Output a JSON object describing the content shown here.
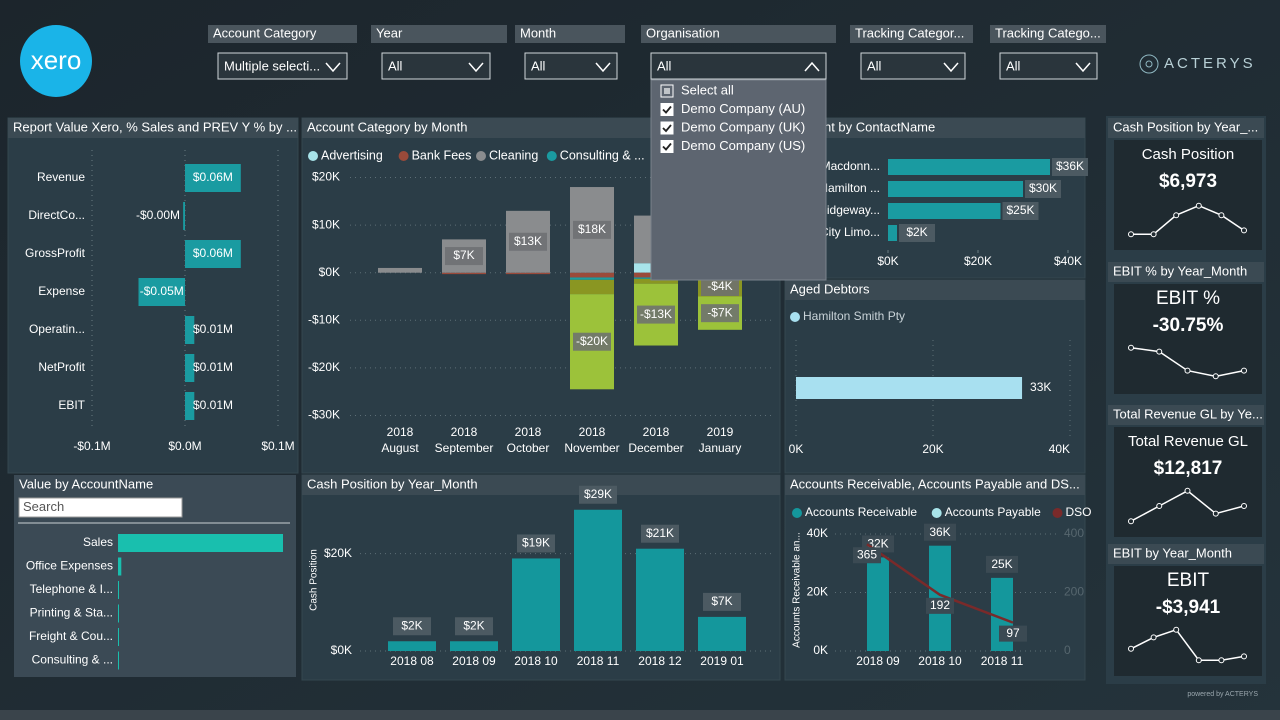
{
  "logo": "xero",
  "brand": "ACTERYS",
  "footer": "powered by ACTERYS",
  "filters": [
    {
      "label": "Account Category",
      "value": "Multiple selecti..."
    },
    {
      "label": "Year",
      "value": "All"
    },
    {
      "label": "Month",
      "value": "All"
    },
    {
      "label": "Organisation",
      "value": "All"
    },
    {
      "label": "Tracking Categor...",
      "value": "All"
    },
    {
      "label": "Tracking Catego...",
      "value": "All"
    }
  ],
  "organisation_dropdown": {
    "options": [
      "Select all",
      "Demo Company (AU)",
      "Demo Company (UK)",
      "Demo Company (US)"
    ]
  },
  "report_value": {
    "type": "bar",
    "title": "Report Value Xero, % Sales and PREV Y % by ...",
    "categories": [
      "Revenue",
      "DirectCo...",
      "GrossProfit",
      "Expense",
      "Operatin...",
      "NetProfit",
      "EBIT"
    ],
    "values": [
      0.06,
      -0.002,
      0.06,
      -0.05,
      0.01,
      0.01,
      0.01
    ],
    "value_labels": [
      "$0.06M",
      "-$0.00M",
      "$0.06M",
      "-$0.05M",
      "$0.01M",
      "$0.01M",
      "$0.01M"
    ],
    "color": "#1a9ba1",
    "xlim": [
      -0.1,
      0.1
    ],
    "xticks": [
      {
        "value": -0.1,
        "label": "-$0.1M"
      },
      {
        "value": 0,
        "label": "$0.0M"
      },
      {
        "value": 0.1,
        "label": "$0.1M"
      }
    ]
  },
  "account_category": {
    "type": "bar",
    "title": "Account Category by Month",
    "categories": [
      [
        "2018",
        "August"
      ],
      [
        "2018",
        "September"
      ],
      [
        "2018",
        "October"
      ],
      [
        "2018",
        "November"
      ],
      [
        "2018",
        "December"
      ],
      [
        "2019",
        "January"
      ]
    ],
    "series": [
      {
        "name": "Advertising",
        "color": "#a8e4ea",
        "values": [
          0,
          0,
          0,
          0,
          2,
          0
        ]
      },
      {
        "name": "Bank Fees",
        "color": "#9a4a3a",
        "values": [
          0,
          -0.3,
          -0.3,
          -1,
          -1,
          -0.5
        ]
      },
      {
        "name": "Cleaning",
        "color": "#8a8c8e",
        "values": [
          1,
          7,
          13,
          18,
          10,
          1
        ],
        "value_labels": [
          null,
          "$7K",
          "$13K",
          "$18K",
          null,
          null
        ]
      },
      {
        "name": "Consulting & ...",
        "color": "#1a9ba1",
        "values": [
          0,
          0,
          0,
          -0.5,
          -0.3,
          -0.5
        ]
      },
      {
        "color": "#8a9622",
        "values": [
          0,
          0,
          0,
          -3,
          -1,
          -4
        ],
        "value_labels": [
          null,
          null,
          null,
          null,
          null,
          "-$4K"
        ]
      },
      {
        "color": "#9cc23a",
        "values": [
          0,
          0,
          0,
          -20,
          -13,
          -7
        ],
        "value_labels": [
          null,
          null,
          null,
          "-$20K",
          "-$13K",
          "-$7K"
        ]
      }
    ],
    "ylim": [
      -32,
      22
    ],
    "yticks": [
      {
        "value": -30,
        "label": "-$30K"
      },
      {
        "value": -20,
        "label": "-$20K"
      },
      {
        "value": -10,
        "label": "-$10K"
      },
      {
        "value": 0,
        "label": "$0K"
      },
      {
        "value": 10,
        "label": "$10K"
      },
      {
        "value": 20,
        "label": "$20K"
      }
    ]
  },
  "contacts": {
    "type": "bar",
    "title": "Amount by ContactName",
    "categories": [
      "Macdonn...",
      "Hamilton ...",
      "Ridgeway...",
      "City Limo..."
    ],
    "values": [
      36,
      30,
      25,
      2
    ],
    "value_labels": [
      "$36K",
      "$30K",
      "$25K",
      "$2K"
    ],
    "color": "#1a9ba1",
    "xlim": [
      0,
      40
    ],
    "xticks": [
      {
        "value": 0,
        "label": "$0K"
      },
      {
        "value": 20,
        "label": "$20K"
      },
      {
        "value": 40,
        "label": "$40K"
      }
    ]
  },
  "aged_debtors": {
    "type": "bar",
    "title": "Aged Debtors",
    "series": [
      {
        "name": "Hamilton Smith Pty",
        "color": "#a8e0f0",
        "values": [
          33
        ],
        "value_labels": [
          "33K"
        ]
      }
    ],
    "xlim": [
      0,
      40
    ],
    "xticks": [
      {
        "value": 0,
        "label": "0K"
      },
      {
        "value": 20,
        "label": "20K"
      },
      {
        "value": 40,
        "label": "40K"
      }
    ]
  },
  "account_name": {
    "type": "bar",
    "title": "Value by AccountName",
    "search_placeholder": "Search",
    "categories": [
      "Sales",
      "Office Expenses",
      "Telephone & I...",
      "Printing & Sta...",
      "Freight & Cou...",
      "Consulting & ..."
    ],
    "values": [
      60000,
      1200,
      300,
      250,
      200,
      200
    ],
    "color": "#19bfae",
    "xlim": [
      0,
      60000
    ]
  },
  "cash_position": {
    "type": "bar",
    "title": "Cash Position by Year_Month",
    "ylabel": "Cash Position",
    "categories": [
      "2018 08",
      "2018 09",
      "2018 10",
      "2018 11",
      "2018 12",
      "2019 01"
    ],
    "values": [
      2,
      2,
      19,
      29,
      21,
      7
    ],
    "value_labels": [
      "$2K",
      "$2K",
      "$19K",
      "$29K",
      "$21K",
      "$7K"
    ],
    "color": "#14979c",
    "ylim": [
      0,
      31
    ],
    "yticks": [
      {
        "value": 0,
        "label": "$0K"
      },
      {
        "value": 20,
        "label": "$20K"
      }
    ]
  },
  "ar_ap": {
    "type": "bar",
    "title": "Accounts Receivable, Accounts Payable and DS...",
    "ylabel": "Accounts Receivable an...",
    "categories": [
      "2018 09",
      "2018 10",
      "2018 11"
    ],
    "series": [
      {
        "name": "Accounts Receivable",
        "color": "#14979c",
        "values": [
          32,
          36,
          25
        ],
        "value_labels": [
          "32K",
          "36K",
          "25K"
        ]
      },
      {
        "name": "Accounts Payable",
        "color": "#a8e4ea"
      },
      {
        "name": "DSO",
        "color": "#7a2a2a",
        "axis": "y2",
        "values": [
          365,
          192,
          97
        ]
      }
    ],
    "ylim": [
      0,
      40
    ],
    "yticks": [
      {
        "value": 0,
        "label": "0K"
      },
      {
        "value": 20,
        "label": "20K"
      },
      {
        "value": 40,
        "label": "40K"
      }
    ],
    "y2lim": [
      0,
      400
    ],
    "y2ticks": [
      0,
      200,
      400
    ]
  },
  "kpis": [
    {
      "header": "Cash Position by Year_...",
      "title": "Cash Position",
      "value": "$6,973",
      "sparkline": [
        1,
        1,
        6,
        8.5,
        6,
        2
      ],
      "ylim": [
        0,
        10
      ]
    },
    {
      "header": "EBIT % by Year_Month",
      "title": "EBIT %",
      "value": "-30.75%",
      "sparkline": [
        9,
        8,
        3,
        1.5,
        3
      ],
      "ylim": [
        0,
        10
      ]
    },
    {
      "header": "Total Revenue GL by Ye...",
      "title": "Total Revenue GL",
      "value": "$12,817",
      "sparkline": [
        1,
        5,
        9,
        3,
        5
      ],
      "ylim": [
        0,
        10
      ]
    },
    {
      "header": "EBIT by Year_Month",
      "title": "EBIT",
      "value": "-$3,941",
      "sparkline": [
        4,
        7,
        9,
        1,
        1,
        2
      ],
      "ylim": [
        0,
        10
      ]
    }
  ]
}
